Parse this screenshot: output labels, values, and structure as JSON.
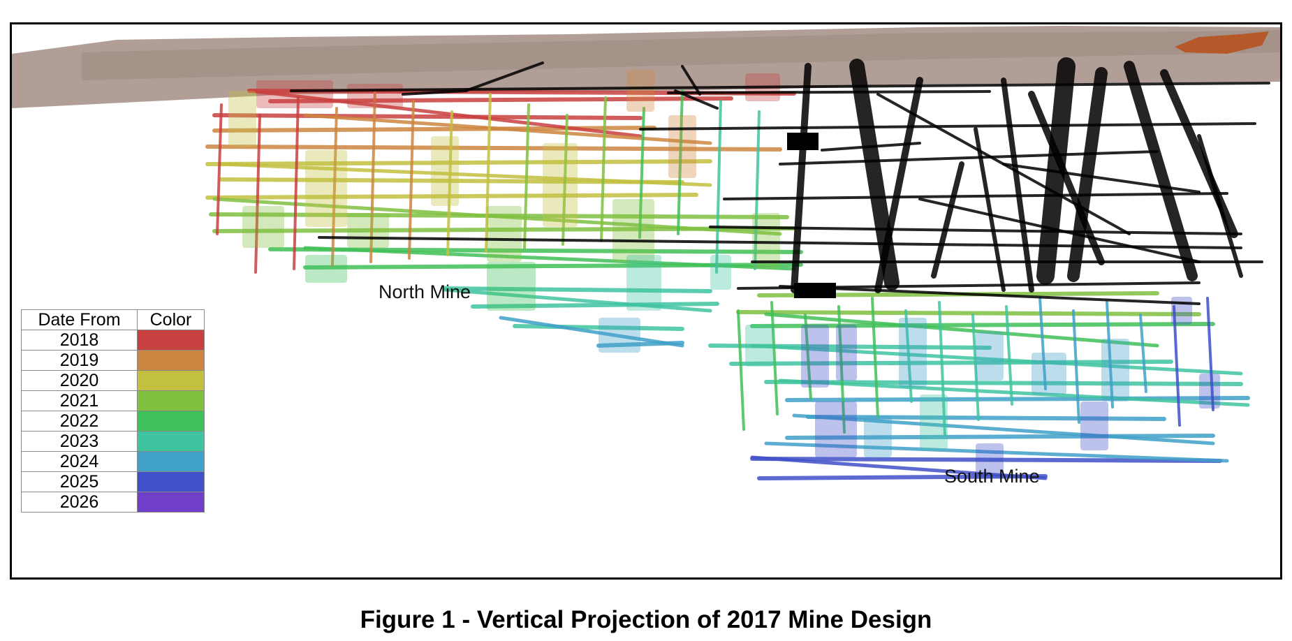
{
  "figure": {
    "caption": "Figure 1 - Vertical Projection of 2017 Mine Design",
    "labels": {
      "north_mine": "North Mine",
      "south_mine": "South Mine"
    }
  },
  "legend": {
    "headers": {
      "date_from": "Date From",
      "color": "Color"
    },
    "rows": [
      {
        "year": "2018",
        "color": "#c94040"
      },
      {
        "year": "2019",
        "color": "#cd8640"
      },
      {
        "year": "2020",
        "color": "#c3c040"
      },
      {
        "year": "2021",
        "color": "#80c040"
      },
      {
        "year": "2022",
        "color": "#40c058"
      },
      {
        "year": "2023",
        "color": "#40c4a0"
      },
      {
        "year": "2024",
        "color": "#40a0c8"
      },
      {
        "year": "2025",
        "color": "#4050c8"
      },
      {
        "year": "2026",
        "color": "#7040c8"
      }
    ]
  },
  "colors": {
    "surface": "#a8948c",
    "existing_workings": "#000000"
  }
}
